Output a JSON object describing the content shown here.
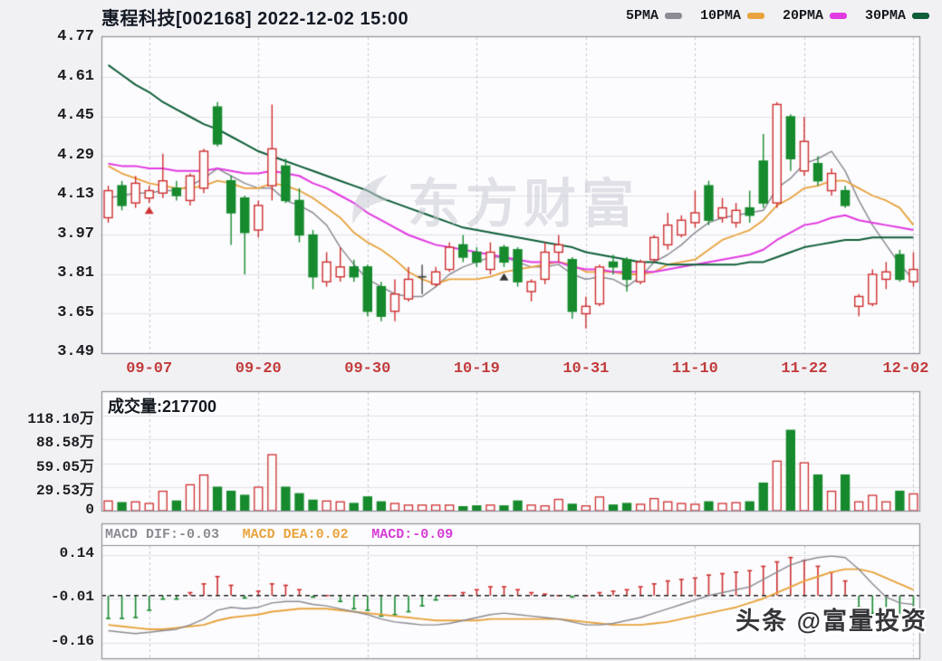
{
  "header": {
    "title": "惠程科技[002168] 2022-12-02 15:00"
  },
  "legend": {
    "items": [
      {
        "label": "5PMA",
        "color": "#8b8b95"
      },
      {
        "label": "10PMA",
        "color": "#e8a33d"
      },
      {
        "label": "20PMA",
        "color": "#e23ae2"
      },
      {
        "label": "30PMA",
        "color": "#0e5e38"
      }
    ]
  },
  "watermark": {
    "text": "东方财富"
  },
  "stamp": {
    "text": "头条 @富量投资"
  },
  "volume_header": {
    "text": "成交量:217700"
  },
  "macd_header": [
    {
      "text": "MACD DIF:-0.03",
      "color": "#8a8a92"
    },
    {
      "text": "MACD DEA:0.02",
      "color": "#e8a33d"
    },
    {
      "text": "MACD:-0.09",
      "color": "#d63bd6"
    }
  ],
  "chart_data": {
    "type": "candlestick",
    "title": "惠程科技[002168] 2022-12-02 15:00",
    "legend": [
      "5PMA",
      "10PMA",
      "20PMA",
      "30PMA"
    ],
    "panels": {
      "main": {
        "ylim": [
          3.49,
          4.77
        ],
        "yticks": [
          "4.77",
          "4.61",
          "4.45",
          "4.29",
          "4.13",
          "3.97",
          "3.81",
          "3.65",
          "3.49"
        ],
        "ytick_values": [
          4.77,
          4.61,
          4.45,
          4.29,
          4.13,
          3.97,
          3.81,
          3.65,
          3.49
        ],
        "grid_prices": [
          4.61,
          4.45,
          4.29,
          4.13,
          3.97,
          3.81,
          3.65
        ]
      },
      "volume": {
        "unit": "万",
        "yticks": [
          "118.10万",
          "88.58万",
          "59.05万",
          "29.53万",
          "0"
        ],
        "ytick_values": [
          118.1,
          88.58,
          59.05,
          29.53,
          0
        ],
        "last_value_label": "217700"
      },
      "macd": {
        "yticks": [
          "0.14",
          "-0.01",
          "-0.16"
        ],
        "ytick_values": [
          0.14,
          -0.01,
          -0.16
        ],
        "dif_last": -0.03,
        "dea_last": 0.02,
        "macd_last": -0.09
      }
    },
    "xtick_indices": [
      3,
      11,
      19,
      27,
      35,
      43,
      51,
      59
    ],
    "dates": [
      "09-02",
      "09-05",
      "09-06",
      "09-07",
      "09-08",
      "09-09",
      "09-13",
      "09-14",
      "09-15",
      "09-16",
      "09-19",
      "09-20",
      "09-21",
      "09-22",
      "09-23",
      "09-26",
      "09-27",
      "09-28",
      "09-29",
      "09-30",
      "10-10",
      "10-11",
      "10-12",
      "10-13",
      "10-14",
      "10-17",
      "10-18",
      "10-19",
      "10-20",
      "10-21",
      "10-24",
      "10-25",
      "10-26",
      "10-27",
      "10-28",
      "10-31",
      "11-01",
      "11-02",
      "11-03",
      "11-04",
      "11-07",
      "11-08",
      "11-09",
      "11-10",
      "11-11",
      "11-14",
      "11-15",
      "11-16",
      "11-17",
      "11-18",
      "11-21",
      "11-22",
      "11-23",
      "11-24",
      "11-25",
      "11-28",
      "11-29",
      "11-30",
      "12-01",
      "12-02"
    ],
    "ohlc": [
      [
        4.04,
        4.17,
        4.02,
        4.15
      ],
      [
        4.17,
        4.19,
        4.07,
        4.09
      ],
      [
        4.1,
        4.21,
        4.08,
        4.18
      ],
      [
        4.12,
        4.17,
        4.1,
        4.15
      ],
      [
        4.14,
        4.3,
        4.12,
        4.19
      ],
      [
        4.16,
        4.19,
        4.11,
        4.13
      ],
      [
        4.11,
        4.22,
        4.09,
        4.21
      ],
      [
        4.16,
        4.32,
        4.14,
        4.31
      ],
      [
        4.49,
        4.51,
        4.33,
        4.34
      ],
      [
        4.19,
        4.21,
        3.93,
        4.06
      ],
      [
        4.12,
        4.13,
        3.81,
        3.98
      ],
      [
        3.99,
        4.11,
        3.96,
        4.09
      ],
      [
        4.17,
        4.5,
        4.11,
        4.32
      ],
      [
        4.25,
        4.28,
        4.1,
        4.11
      ],
      [
        4.11,
        4.16,
        3.94,
        3.97
      ],
      [
        3.97,
        3.99,
        3.75,
        3.8
      ],
      [
        3.78,
        3.9,
        3.76,
        3.86
      ],
      [
        3.8,
        3.92,
        3.78,
        3.84
      ],
      [
        3.84,
        3.87,
        3.78,
        3.8
      ],
      [
        3.84,
        3.85,
        3.64,
        3.66
      ],
      [
        3.76,
        3.78,
        3.62,
        3.64
      ],
      [
        3.66,
        3.79,
        3.62,
        3.73
      ],
      [
        3.71,
        3.84,
        3.7,
        3.79
      ],
      [
        3.8,
        3.85,
        3.73,
        3.8
      ],
      [
        3.77,
        3.84,
        3.76,
        3.82
      ],
      [
        3.83,
        3.94,
        3.82,
        3.92
      ],
      [
        3.93,
        3.97,
        3.86,
        3.88
      ],
      [
        3.9,
        3.92,
        3.84,
        3.86
      ],
      [
        3.83,
        3.94,
        3.81,
        3.9
      ],
      [
        3.92,
        3.93,
        3.84,
        3.86
      ],
      [
        3.91,
        3.92,
        3.76,
        3.78
      ],
      [
        3.74,
        3.79,
        3.7,
        3.78
      ],
      [
        3.79,
        3.94,
        3.77,
        3.9
      ],
      [
        3.9,
        3.97,
        3.86,
        3.93
      ],
      [
        3.87,
        3.88,
        3.63,
        3.66
      ],
      [
        3.65,
        3.72,
        3.59,
        3.68
      ],
      [
        3.69,
        3.85,
        3.68,
        3.84
      ],
      [
        3.86,
        3.89,
        3.81,
        3.84
      ],
      [
        3.87,
        3.88,
        3.74,
        3.79
      ],
      [
        3.78,
        3.87,
        3.77,
        3.86
      ],
      [
        3.87,
        3.97,
        3.86,
        3.96
      ],
      [
        3.93,
        4.06,
        3.91,
        4.01
      ],
      [
        3.97,
        4.05,
        3.96,
        4.03
      ],
      [
        4.02,
        4.15,
        4.0,
        4.06
      ],
      [
        4.17,
        4.19,
        4.01,
        4.03
      ],
      [
        4.04,
        4.12,
        4.02,
        4.08
      ],
      [
        4.02,
        4.1,
        4.0,
        4.07
      ],
      [
        4.08,
        4.15,
        4.02,
        4.05
      ],
      [
        4.27,
        4.38,
        4.08,
        4.1
      ],
      [
        4.1,
        4.51,
        4.08,
        4.5
      ],
      [
        4.45,
        4.46,
        4.23,
        4.28
      ],
      [
        4.23,
        4.45,
        4.21,
        4.35
      ],
      [
        4.26,
        4.29,
        4.17,
        4.19
      ],
      [
        4.15,
        4.24,
        4.13,
        4.22
      ],
      [
        4.15,
        4.17,
        4.08,
        4.09
      ],
      [
        3.68,
        3.73,
        3.64,
        3.72
      ],
      [
        3.69,
        3.83,
        3.68,
        3.81
      ],
      [
        3.79,
        3.86,
        3.75,
        3.82
      ],
      [
        3.89,
        3.91,
        3.78,
        3.79
      ],
      [
        3.78,
        3.9,
        3.76,
        3.83
      ]
    ],
    "volumes_wan": [
      13,
      11,
      12,
      10,
      25,
      13,
      33,
      45,
      30,
      25,
      20,
      30,
      70,
      30,
      22,
      14,
      13,
      12,
      10,
      18,
      12,
      10,
      8,
      8,
      8,
      8,
      6,
      7,
      8,
      7,
      13,
      8,
      7,
      15,
      9,
      7,
      18,
      8,
      10,
      9,
      16,
      12,
      10,
      9,
      12,
      10,
      11,
      12,
      35,
      62,
      100,
      60,
      45,
      25,
      45,
      12,
      20,
      12,
      25,
      21.77
    ],
    "ma5": [
      4.12,
      4.13,
      4.14,
      4.14,
      4.15,
      4.15,
      4.17,
      4.2,
      4.24,
      4.21,
      4.18,
      4.16,
      4.16,
      4.11,
      4.09,
      4.06,
      4.01,
      3.92,
      3.85,
      3.79,
      3.76,
      3.73,
      3.72,
      3.72,
      3.76,
      3.81,
      3.84,
      3.86,
      3.88,
      3.88,
      3.86,
      3.84,
      3.84,
      3.85,
      3.81,
      3.79,
      3.8,
      3.79,
      3.76,
      3.8,
      3.86,
      3.89,
      3.93,
      3.98,
      4.02,
      4.04,
      4.05,
      4.06,
      4.07,
      4.16,
      4.2,
      4.26,
      4.28,
      4.31,
      4.23,
      4.11,
      4.01,
      3.93,
      3.85,
      3.79
    ],
    "ma10": [
      4.25,
      4.22,
      4.2,
      4.18,
      4.17,
      4.16,
      4.16,
      4.17,
      4.19,
      4.18,
      4.16,
      4.16,
      4.18,
      4.17,
      4.15,
      4.12,
      4.08,
      4.04,
      3.98,
      3.94,
      3.91,
      3.87,
      3.82,
      3.79,
      3.77,
      3.79,
      3.79,
      3.79,
      3.8,
      3.82,
      3.83,
      3.84,
      3.85,
      3.86,
      3.85,
      3.82,
      3.82,
      3.82,
      3.81,
      3.81,
      3.82,
      3.85,
      3.86,
      3.87,
      3.91,
      3.95,
      3.97,
      3.99,
      4.03,
      4.09,
      4.12,
      4.16,
      4.17,
      4.19,
      4.19,
      4.16,
      4.13,
      4.11,
      4.08,
      4.01
    ],
    "ma20": [
      4.26,
      4.25,
      4.25,
      4.24,
      4.24,
      4.23,
      4.23,
      4.23,
      4.24,
      4.23,
      4.22,
      4.22,
      4.23,
      4.22,
      4.21,
      4.18,
      4.16,
      4.13,
      4.1,
      4.06,
      4.03,
      4.0,
      3.97,
      3.95,
      3.93,
      3.92,
      3.91,
      3.9,
      3.89,
      3.88,
      3.87,
      3.86,
      3.86,
      3.86,
      3.84,
      3.83,
      3.83,
      3.82,
      3.82,
      3.82,
      3.82,
      3.83,
      3.84,
      3.85,
      3.86,
      3.87,
      3.88,
      3.89,
      3.91,
      3.95,
      3.98,
      4.01,
      4.02,
      4.04,
      4.05,
      4.03,
      4.02,
      4.01,
      4.0,
      3.99
    ],
    "ma30": [
      4.66,
      4.62,
      4.58,
      4.55,
      4.51,
      4.48,
      4.45,
      4.42,
      4.4,
      4.37,
      4.34,
      4.31,
      4.29,
      4.27,
      4.25,
      4.23,
      4.21,
      4.19,
      4.17,
      4.15,
      4.12,
      4.1,
      4.08,
      4.06,
      4.04,
      4.02,
      4.0,
      3.99,
      3.98,
      3.97,
      3.96,
      3.95,
      3.94,
      3.93,
      3.92,
      3.9,
      3.89,
      3.88,
      3.87,
      3.86,
      3.86,
      3.85,
      3.85,
      3.85,
      3.85,
      3.85,
      3.85,
      3.86,
      3.86,
      3.88,
      3.9,
      3.92,
      3.93,
      3.94,
      3.95,
      3.95,
      3.96,
      3.96,
      3.96,
      3.96
    ],
    "macd": {
      "dif": [
        -0.12,
        -0.125,
        -0.13,
        -0.125,
        -0.12,
        -0.115,
        -0.1,
        -0.08,
        -0.05,
        -0.04,
        -0.045,
        -0.04,
        -0.025,
        -0.02,
        -0.02,
        -0.03,
        -0.035,
        -0.045,
        -0.055,
        -0.065,
        -0.08,
        -0.09,
        -0.095,
        -0.1,
        -0.1,
        -0.095,
        -0.085,
        -0.075,
        -0.065,
        -0.06,
        -0.065,
        -0.07,
        -0.075,
        -0.08,
        -0.09,
        -0.1,
        -0.1,
        -0.095,
        -0.085,
        -0.075,
        -0.06,
        -0.045,
        -0.03,
        -0.015,
        0.0,
        0.01,
        0.02,
        0.03,
        0.055,
        0.08,
        0.105,
        0.12,
        0.13,
        0.135,
        0.13,
        0.09,
        0.04,
        -0.005,
        -0.025,
        -0.03
      ],
      "dea": [
        -0.1,
        -0.105,
        -0.11,
        -0.115,
        -0.115,
        -0.11,
        -0.105,
        -0.1,
        -0.085,
        -0.075,
        -0.07,
        -0.065,
        -0.055,
        -0.05,
        -0.045,
        -0.045,
        -0.045,
        -0.05,
        -0.055,
        -0.06,
        -0.065,
        -0.07,
        -0.075,
        -0.08,
        -0.085,
        -0.085,
        -0.085,
        -0.085,
        -0.08,
        -0.08,
        -0.08,
        -0.08,
        -0.08,
        -0.08,
        -0.085,
        -0.09,
        -0.095,
        -0.1,
        -0.1,
        -0.1,
        -0.095,
        -0.09,
        -0.08,
        -0.07,
        -0.06,
        -0.05,
        -0.04,
        -0.025,
        -0.01,
        0.01,
        0.03,
        0.05,
        0.065,
        0.08,
        0.09,
        0.09,
        0.08,
        0.06,
        0.04,
        0.02
      ],
      "hist": [
        -0.078,
        -0.078,
        -0.075,
        -0.05,
        -0.012,
        -0.012,
        0.01,
        0.04,
        0.065,
        0.035,
        -0.008,
        0.015,
        0.04,
        0.035,
        0.02,
        -0.005,
        0.0,
        -0.02,
        -0.045,
        -0.05,
        -0.07,
        -0.065,
        -0.055,
        -0.035,
        -0.015,
        0.0,
        0.01,
        0.02,
        0.03,
        0.03,
        0.02,
        0.01,
        0.005,
        0.0,
        -0.005,
        0.0,
        0.01,
        0.015,
        0.02,
        0.03,
        0.04,
        0.05,
        0.055,
        0.06,
        0.07,
        0.075,
        0.08,
        0.085,
        0.1,
        0.115,
        0.13,
        0.12,
        0.1,
        0.08,
        0.05,
        -0.04,
        -0.06,
        -0.075,
        -0.07,
        -0.09
      ]
    },
    "markers": [
      {
        "index": 3,
        "price": 4.07,
        "shape": "triangle-up",
        "color": "#cc3333"
      },
      {
        "index": 29,
        "price": 3.8,
        "shape": "triangle-up",
        "color": "#333333"
      }
    ],
    "colors": {
      "up": "#cf2f2f",
      "down": "#168a2d",
      "doji_dark": "#444444",
      "ma5": "#8b8b95",
      "ma10": "#e8a33d",
      "ma20": "#e23ae2",
      "ma30": "#0e5e38",
      "dif": "#8a8a92",
      "dea": "#e8a33d",
      "panel_bg": "#fcfcfe",
      "grid": "#e2e2e8",
      "grid_dash": "#c8c8d0",
      "border": "#8f8f99",
      "date_text": "#c23b3b",
      "zero_line": "#222222"
    }
  }
}
